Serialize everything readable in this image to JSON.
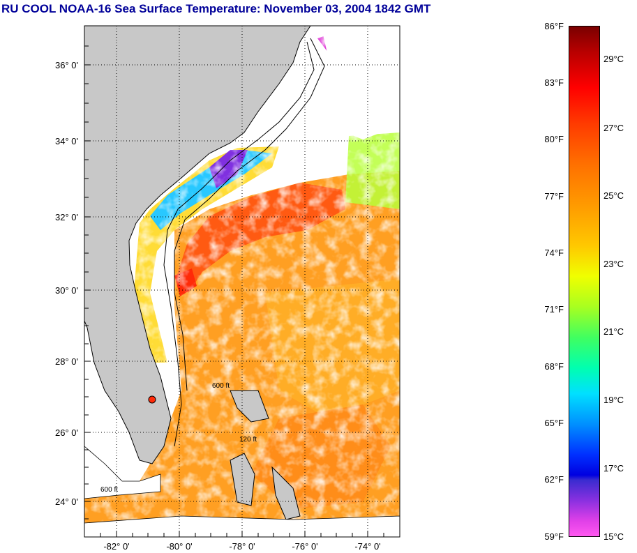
{
  "title": "RU COOL  NOAA-16  Sea Surface Temperature:  November 03, 2004 1842 GMT",
  "map": {
    "lat_labels": [
      "36° 0'",
      "34° 0'",
      "32° 0'",
      "30° 0'",
      "28° 0'",
      "26° 0'",
      "24° 0'"
    ],
    "lon_labels": [
      "-82° 0'",
      "-80° 0'",
      "-78° 0'",
      "-76° 0'",
      "-74° 0'"
    ],
    "depth_labels": [
      "120 ft",
      "600 ft"
    ],
    "colors": {
      "land": "#c8c8c8",
      "cloud": "#ffffff",
      "warm_water": "#ff9a1e",
      "gulf_stream": "#ff4a10"
    }
  },
  "colorbar": {
    "fahrenheit": [
      "86°F",
      "83°F",
      "80°F",
      "77°F",
      "74°F",
      "71°F",
      "68°F",
      "65°F",
      "62°F",
      "59°F"
    ],
    "celsius": [
      "29°C",
      "27°C",
      "25°C",
      "23°C",
      "21°C",
      "19°C",
      "17°C",
      "15°C"
    ]
  }
}
